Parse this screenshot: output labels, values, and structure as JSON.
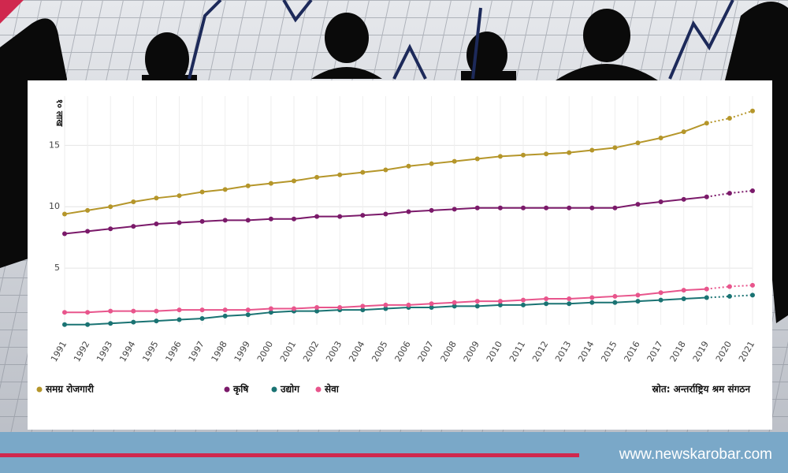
{
  "chart_data": {
    "type": "line",
    "y_label": "१० लाख",
    "source": "स्रोत: अन्तर्राष्ट्रिय श्रम संगठन",
    "website": "www.newskarobar.com",
    "x": [
      1991,
      1992,
      1993,
      1994,
      1995,
      1996,
      1997,
      1998,
      1999,
      2000,
      2001,
      2002,
      2003,
      2004,
      2005,
      2006,
      2007,
      2008,
      2009,
      2010,
      2011,
      2012,
      2013,
      2014,
      2015,
      2016,
      2017,
      2018,
      2019,
      2020,
      2021
    ],
    "xlim": [
      1991,
      2021
    ],
    "projected_from": 2019,
    "ylim": [
      0,
      19
    ],
    "yticks": [
      5,
      10,
      15
    ],
    "grid": true,
    "legend": "bottom",
    "series": [
      {
        "name": "समग्र रोजगारी",
        "color": "#b5962a",
        "values": [
          9.4,
          9.7,
          10.0,
          10.4,
          10.7,
          10.9,
          11.2,
          11.4,
          11.7,
          11.9,
          12.1,
          12.4,
          12.6,
          12.8,
          13.0,
          13.3,
          13.5,
          13.7,
          13.9,
          14.1,
          14.2,
          14.3,
          14.4,
          14.6,
          14.8,
          15.2,
          15.6,
          16.1,
          16.8,
          17.2,
          17.8
        ]
      },
      {
        "name": "कृषि",
        "color": "#7b1a6a",
        "values": [
          7.8,
          8.0,
          8.2,
          8.4,
          8.6,
          8.7,
          8.8,
          8.9,
          8.9,
          9.0,
          9.0,
          9.2,
          9.2,
          9.3,
          9.4,
          9.6,
          9.7,
          9.8,
          9.9,
          9.9,
          9.9,
          9.9,
          9.9,
          9.9,
          9.9,
          10.2,
          10.4,
          10.6,
          10.8,
          11.1,
          11.3
        ]
      },
      {
        "name": "उद्योग",
        "color": "#1a7373",
        "values": [
          0.4,
          0.4,
          0.5,
          0.6,
          0.7,
          0.8,
          0.9,
          1.1,
          1.2,
          1.4,
          1.5,
          1.5,
          1.6,
          1.6,
          1.7,
          1.8,
          1.8,
          1.9,
          1.9,
          2.0,
          2.0,
          2.1,
          2.1,
          2.2,
          2.2,
          2.3,
          2.4,
          2.5,
          2.6,
          2.7,
          2.8
        ]
      },
      {
        "name": "सेवा",
        "color": "#e8558c",
        "values": [
          1.4,
          1.4,
          1.5,
          1.5,
          1.5,
          1.6,
          1.6,
          1.6,
          1.6,
          1.7,
          1.7,
          1.8,
          1.8,
          1.9,
          2.0,
          2.0,
          2.1,
          2.2,
          2.3,
          2.3,
          2.4,
          2.5,
          2.5,
          2.6,
          2.7,
          2.8,
          3.0,
          3.2,
          3.3,
          3.5,
          3.6
        ]
      }
    ]
  }
}
